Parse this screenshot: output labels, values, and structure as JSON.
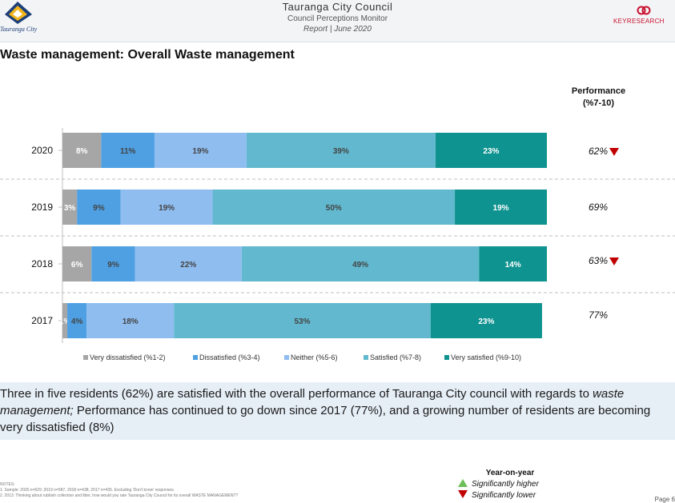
{
  "header": {
    "left_logo_text": "Tauranga City",
    "title": "Tauranga City Council",
    "subtitle": "Council Perceptions Monitor",
    "report": "Report | June 2020",
    "right_logo_text": "KEYRESEARCH"
  },
  "page_title": "Waste management: Overall Waste management",
  "performance_header": [
    "Performance",
    "(%7-10)"
  ],
  "performance": [
    {
      "year": "2020",
      "value": "62%",
      "trend": "down"
    },
    {
      "year": "2019",
      "value": "69%",
      "trend": ""
    },
    {
      "year": "2018",
      "value": "63%",
      "trend": "down"
    },
    {
      "year": "2017",
      "value": "77%",
      "trend": ""
    }
  ],
  "chart_data": {
    "type": "bar",
    "orientation": "horizontal",
    "stacked": true,
    "categories": [
      "2020",
      "2019",
      "2018",
      "2017"
    ],
    "series": [
      {
        "name": "Very dissatisfied (%1-2)",
        "color": "#a6a6a6",
        "values": [
          8,
          3,
          6,
          1
        ],
        "labels": [
          "8%",
          "3%",
          "6%",
          "1%"
        ]
      },
      {
        "name": "Dissatisfied (%3-4)",
        "color": "#4ea0e2",
        "values": [
          11,
          9,
          9,
          4
        ],
        "labels": [
          "11%",
          "9%",
          "9%",
          "4%"
        ]
      },
      {
        "name": "Neither (%5-6)",
        "color": "#8fbdf0",
        "values": [
          19,
          19,
          22,
          18
        ],
        "labels": [
          "19%",
          "19%",
          "22%",
          "18%"
        ]
      },
      {
        "name": "Satisfied (%7-8)",
        "color": "#62b9cf",
        "values": [
          39,
          50,
          49,
          53
        ],
        "labels": [
          "39%",
          "50%",
          "49%",
          "53%"
        ]
      },
      {
        "name": "Very satisfied (%9-10)",
        "color": "#0f9390",
        "values": [
          23,
          19,
          14,
          23
        ],
        "labels": [
          "23%",
          "19%",
          "14%",
          "23%"
        ]
      }
    ],
    "legend": "bottom",
    "grid": false
  },
  "summary": {
    "part1": "Three in five residents (62%) are satisfied with the overall performance of Tauranga City council with regards to ",
    "italic": "waste management;",
    "part2": " Performance has continued to go down since 2017 (77%), and a growing number of residents are becoming very dissatisfied (8%)"
  },
  "notes": {
    "heading": "NOTES:",
    "line1": "1. Sample: 2020 n=629 ;2019 n=587, 2018 n=438, 2017 n=435. Excluding 'Don't know' responses.",
    "line2": "2. 2013: Thinking about rubbish collection and litter, how would you rate Tauranga City Council for its overall WASTE MANAGEMENT?"
  },
  "yoy": {
    "title": "Year-on-year",
    "higher": "Significantly higher",
    "lower": "Significantly lower",
    "higher_color": "#6bbf59",
    "lower_color": "#c00000"
  },
  "page_number": "Page 6"
}
